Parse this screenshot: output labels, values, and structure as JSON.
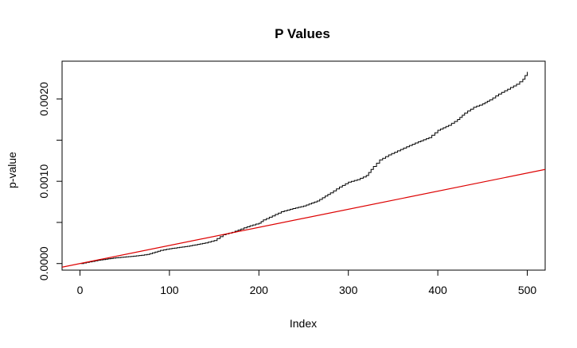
{
  "chart_data": {
    "type": "line",
    "title": "P Values",
    "xlabel": "Index",
    "ylabel": "p-value",
    "xlim": [
      -20,
      520
    ],
    "ylim": [
      -8e-05,
      0.00246
    ],
    "x_ticks": [
      0,
      100,
      200,
      300,
      400,
      500
    ],
    "x_tick_labels": [
      "0",
      "100",
      "200",
      "300",
      "400",
      "500"
    ],
    "y_ticks": [
      0.0,
      0.0005,
      0.001,
      0.0015,
      0.002
    ],
    "y_tick_labels": [
      "0.0000",
      "",
      "0.0010",
      "",
      "0.0020"
    ],
    "grid": false,
    "series": [
      {
        "kind": "step-curve",
        "color": "#000000",
        "points": [
          [
            1,
            0.0
          ],
          [
            20,
            4e-05
          ],
          [
            40,
            7e-05
          ],
          [
            60,
            9e-05
          ],
          [
            75,
            0.00011
          ],
          [
            90,
            0.00016
          ],
          [
            100,
            0.00018
          ],
          [
            120,
            0.00021
          ],
          [
            140,
            0.00025
          ],
          [
            150,
            0.00028
          ],
          [
            160,
            0.00035
          ],
          [
            170,
            0.00038
          ],
          [
            180,
            0.00042
          ],
          [
            190,
            0.00046
          ],
          [
            200,
            0.00049
          ],
          [
            205,
            0.00053
          ],
          [
            215,
            0.00058
          ],
          [
            225,
            0.00063
          ],
          [
            235,
            0.00066
          ],
          [
            250,
            0.0007
          ],
          [
            265,
            0.00076
          ],
          [
            280,
            0.00086
          ],
          [
            290,
            0.00093
          ],
          [
            300,
            0.00099
          ],
          [
            310,
            0.00102
          ],
          [
            320,
            0.00107
          ],
          [
            328,
            0.00118
          ],
          [
            335,
            0.00126
          ],
          [
            345,
            0.00132
          ],
          [
            355,
            0.00137
          ],
          [
            365,
            0.00142
          ],
          [
            378,
            0.00148
          ],
          [
            390,
            0.00153
          ],
          [
            400,
            0.00162
          ],
          [
            412,
            0.00168
          ],
          [
            422,
            0.00175
          ],
          [
            430,
            0.00183
          ],
          [
            440,
            0.0019
          ],
          [
            450,
            0.00194
          ],
          [
            458,
            0.00199
          ],
          [
            468,
            0.00206
          ],
          [
            478,
            0.00212
          ],
          [
            488,
            0.00218
          ],
          [
            495,
            0.00224
          ],
          [
            500,
            0.00233
          ]
        ]
      },
      {
        "kind": "reference-line",
        "color": "#dd0000",
        "intercept": 0.0,
        "slope": 2.2e-06
      }
    ]
  }
}
